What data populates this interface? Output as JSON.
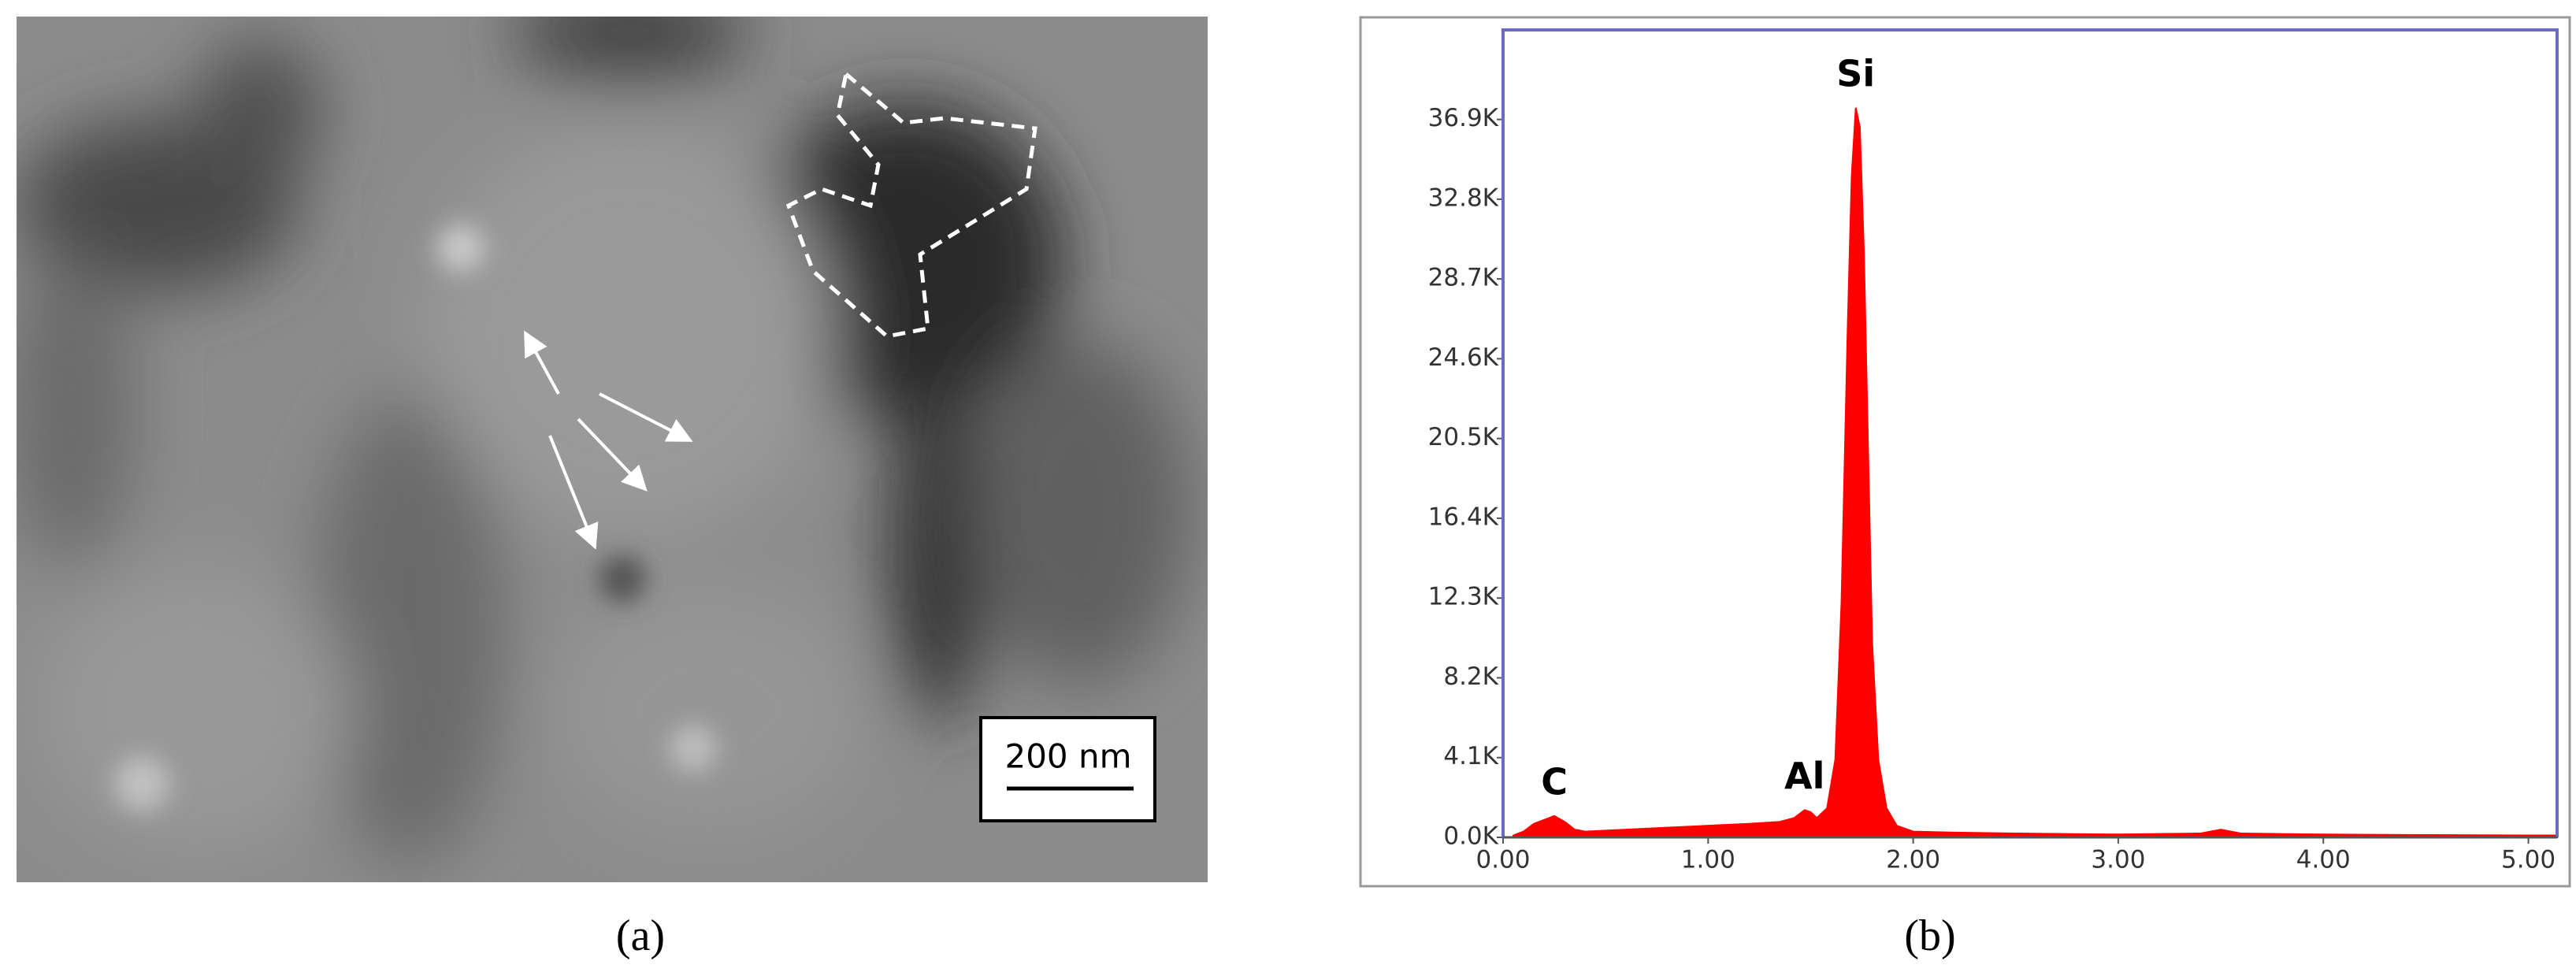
{
  "panel_a": {
    "scale_bar": "200 nm",
    "caption": "(a)"
  },
  "chart_data": {
    "type": "area",
    "caption": "(b)",
    "x": [
      0.05,
      0.1,
      0.15,
      0.2,
      0.25,
      0.3,
      0.35,
      0.4,
      0.5,
      0.6,
      0.8,
      1.0,
      1.2,
      1.35,
      1.42,
      1.47,
      1.5,
      1.53,
      1.58,
      1.62,
      1.65,
      1.68,
      1.7,
      1.72,
      1.74,
      1.76,
      1.78,
      1.8,
      1.83,
      1.87,
      1.92,
      2.0,
      2.2,
      2.5,
      3.0,
      3.4,
      3.5,
      3.6,
      4.0,
      4.5,
      5.0,
      5.14
    ],
    "values": [
      100,
      300,
      700,
      900,
      1100,
      800,
      400,
      300,
      350,
      400,
      500,
      600,
      700,
      800,
      1000,
      1400,
      1300,
      1000,
      1500,
      4000,
      12000,
      26000,
      34000,
      37500,
      36500,
      30000,
      20000,
      10000,
      4000,
      1500,
      600,
      300,
      250,
      200,
      150,
      200,
      400,
      200,
      150,
      120,
      100,
      100
    ],
    "color": "#ff0000",
    "annotations": [
      {
        "text": "C",
        "x": 0.25
      },
      {
        "text": "Al",
        "x": 1.47
      },
      {
        "text": "Si",
        "x": 1.72
      }
    ],
    "xlim": [
      0,
      5.14
    ],
    "xticks": [
      {
        "value": 0,
        "label": "0.00"
      },
      {
        "value": 1,
        "label": "1.00"
      },
      {
        "value": 2,
        "label": "2.00"
      },
      {
        "value": 3,
        "label": "3.00"
      },
      {
        "value": 4,
        "label": "4.00"
      },
      {
        "value": 5,
        "label": "5.00"
      }
    ],
    "ylim": [
      0,
      41500
    ],
    "yticks": [
      {
        "value": 0,
        "label": "0.0K"
      },
      {
        "value": 4100,
        "label": "4.1K"
      },
      {
        "value": 8200,
        "label": "8.2K"
      },
      {
        "value": 12300,
        "label": "12.3K"
      },
      {
        "value": 16400,
        "label": "16.4K"
      },
      {
        "value": 20500,
        "label": "20.5K"
      },
      {
        "value": 24600,
        "label": "24.6K"
      },
      {
        "value": 28700,
        "label": "28.7K"
      },
      {
        "value": 32800,
        "label": "32.8K"
      },
      {
        "value": 36900,
        "label": "36.9K"
      }
    ]
  }
}
